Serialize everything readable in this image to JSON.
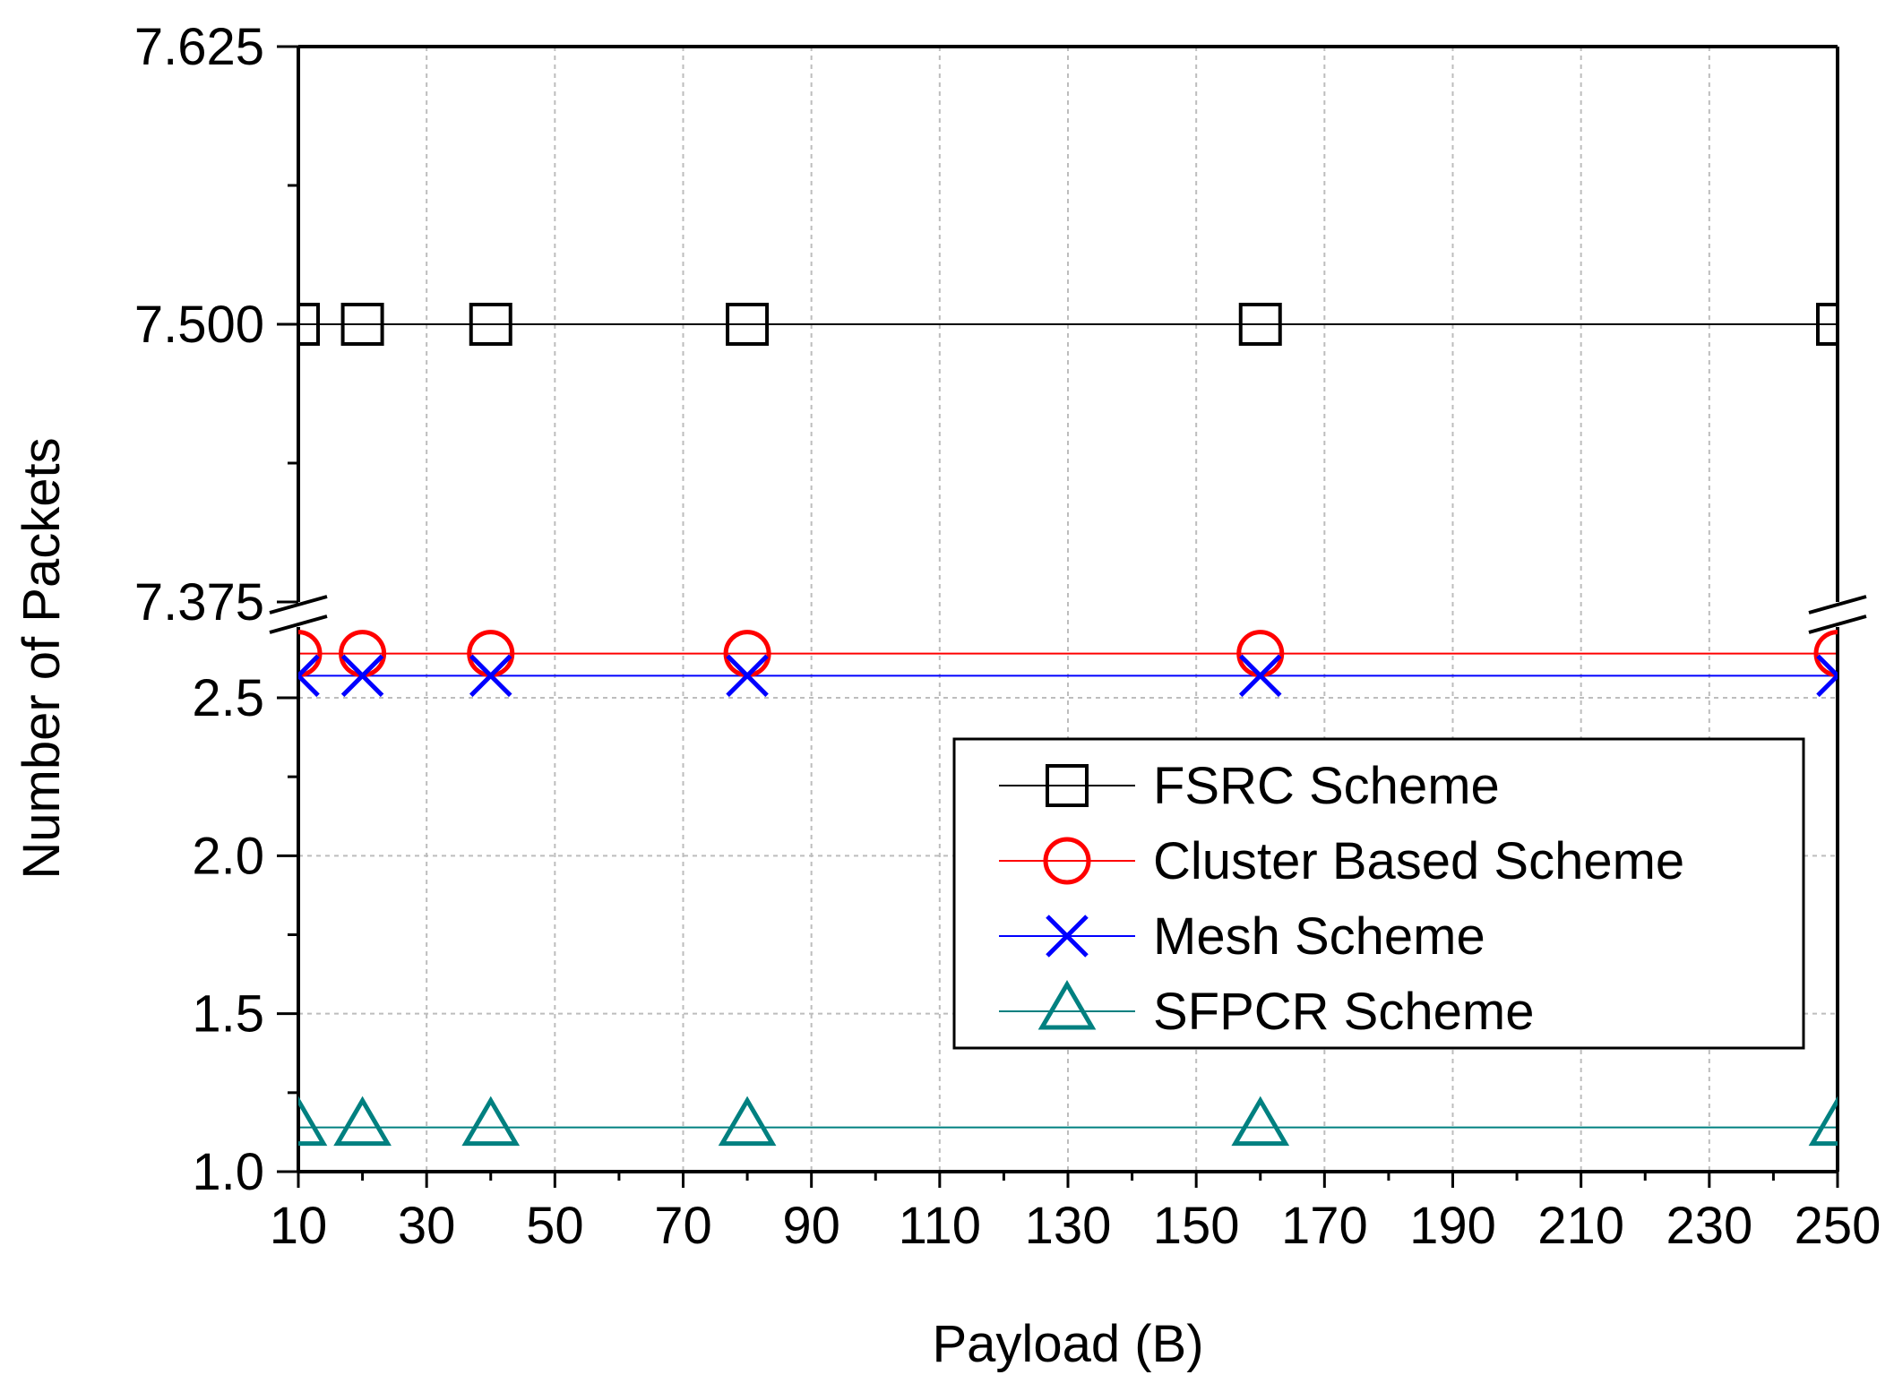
{
  "chart_data": {
    "type": "line",
    "xlabel": "Payload (B)",
    "ylabel": "Number of Packets",
    "x": [
      10,
      20,
      40,
      80,
      160,
      250
    ],
    "xlim": [
      10,
      250
    ],
    "xticks": [
      "10",
      "30",
      "50",
      "70",
      "90",
      "110",
      "130",
      "150",
      "170",
      "190",
      "210",
      "230",
      "250"
    ],
    "y_axis_break": true,
    "lower_ylim": [
      1.0,
      2.7
    ],
    "upper_ylim": [
      7.375,
      7.625
    ],
    "lower_yticks": [
      "1.0",
      "1.5",
      "2.0",
      "2.5"
    ],
    "upper_yticks": [
      "7.375",
      "7.500",
      "7.625"
    ],
    "grid": true,
    "legend_position": "center-right",
    "series": [
      {
        "name": "FSRC Scheme",
        "values": [
          7.5,
          7.5,
          7.5,
          7.5,
          7.5,
          7.5
        ],
        "color": "#000000",
        "marker": "square"
      },
      {
        "name": "Cluster Based Scheme",
        "values": [
          2.64,
          2.64,
          2.64,
          2.64,
          2.64,
          2.64
        ],
        "color": "#ff0000",
        "marker": "circle"
      },
      {
        "name": "Mesh Scheme",
        "values": [
          2.57,
          2.57,
          2.57,
          2.57,
          2.57,
          2.57
        ],
        "color": "#0000ff",
        "marker": "x"
      },
      {
        "name": "SFPCR Scheme",
        "values": [
          1.14,
          1.14,
          1.14,
          1.14,
          1.14,
          1.14
        ],
        "color": "#008080",
        "marker": "triangle"
      }
    ]
  }
}
